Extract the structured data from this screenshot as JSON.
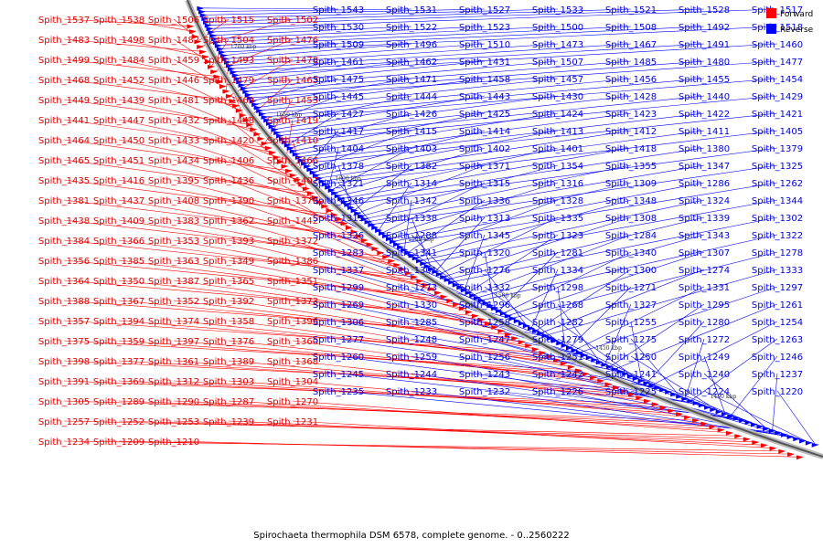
{
  "caption": "Spirochaeta thermophila DSM 6578, complete genome. - 0..2560222",
  "legend": {
    "forward": {
      "label": "Forward",
      "color": "#ff0000"
    },
    "reverse": {
      "label": "Reverse",
      "color": "#0000ff"
    }
  },
  "scale_labels": [
    "1700 kbp",
    "1650 kbp",
    "1600 kbp",
    "1550 kbp",
    "1500 kbp",
    "1450 kbp",
    "1400 kbp"
  ],
  "genes_forward": [
    "Spith_1537",
    "Spith_1538",
    "Spith_1506",
    "Spith_1515",
    "Spith_1502",
    "Spith_1483",
    "Spith_1498",
    "Spith_1482",
    "Spith_1504",
    "Spith_1476",
    "Spith_1499",
    "Spith_1484",
    "Spith_1459",
    "Spith_1493",
    "Spith_1478",
    "Spith_1468",
    "Spith_1452",
    "Spith_1446",
    "Spith_1479",
    "Spith_1463",
    "Spith_1449",
    "Spith_1439",
    "Spith_1481",
    "Spith_1469",
    "Spith_1453",
    "Spith_1441",
    "Spith_1447",
    "Spith_1432",
    "Spith_1448",
    "Spith_1419",
    "Spith_1464",
    "Spith_1450",
    "Spith_1433",
    "Spith_1420",
    "Spith_1410",
    "Spith_1465",
    "Spith_1451",
    "Spith_1434",
    "Spith_1406",
    "Spith_1466",
    "Spith_1435",
    "Spith_1416",
    "Spith_1395",
    "Spith_1436",
    "Spith_1407",
    "Spith_1381",
    "Spith_1437",
    "Spith_1408",
    "Spith_1390",
    "Spith_1370",
    "Spith_1438",
    "Spith_1409",
    "Spith_1383",
    "Spith_1362",
    "Spith_1442",
    "Spith_1384",
    "Spith_1366",
    "Spith_1353",
    "Spith_1393",
    "Spith_1372",
    "Spith_1356",
    "Spith_1385",
    "Spith_1363",
    "Spith_1349",
    "Spith_1386",
    "Spith_1364",
    "Spith_1350",
    "Spith_1387",
    "Spith_1365",
    "Spith_1351",
    "Spith_1388",
    "Spith_1367",
    "Spith_1352",
    "Spith_1392",
    "Spith_1373",
    "Spith_1357",
    "Spith_1394",
    "Spith_1374",
    "Spith_1358",
    "Spith_1396",
    "Spith_1375",
    "Spith_1359",
    "Spith_1397",
    "Spith_1376",
    "Spith_1360",
    "Spith_1398",
    "Spith_1377",
    "Spith_1361",
    "Spith_1389",
    "Spith_1368",
    "Spith_1391",
    "Spith_1369",
    "Spith_1312",
    "Spith_1303",
    "Spith_1304",
    "Spith_1305",
    "Spith_1289",
    "Spith_1290",
    "Spith_1287",
    "Spith_1270",
    "Spith_1257",
    "Spith_1252",
    "Spith_1253",
    "Spith_1239",
    "Spith_1231",
    "Spith_1234",
    "Spith_1209",
    "Spith_1210"
  ],
  "genes_reverse": [
    "Spith_1543",
    "Spith_1531",
    "Spith_1527",
    "Spith_1533",
    "Spith_1521",
    "Spith_1528",
    "Spith_1517",
    "Spith_1530",
    "Spith_1522",
    "Spith_1523",
    "Spith_1500",
    "Spith_1508",
    "Spith_1492",
    "Spith_1518",
    "Spith_1509",
    "Spith_1496",
    "Spith_1510",
    "Spith_1473",
    "Spith_1467",
    "Spith_1491",
    "Spith_1460",
    "Spith_1461",
    "Spith_1462",
    "Spith_1431",
    "Spith_1507",
    "Spith_1485",
    "Spith_1480",
    "Spith_1477",
    "Spith_1475",
    "Spith_1471",
    "Spith_1458",
    "Spith_1457",
    "Spith_1456",
    "Spith_1455",
    "Spith_1454",
    "Spith_1445",
    "Spith_1444",
    "Spith_1443",
    "Spith_1430",
    "Spith_1428",
    "Spith_1440",
    "Spith_1429",
    "Spith_1427",
    "Spith_1426",
    "Spith_1425",
    "Spith_1424",
    "Spith_1423",
    "Spith_1422",
    "Spith_1421",
    "Spith_1417",
    "Spith_1415",
    "Spith_1414",
    "Spith_1413",
    "Spith_1412",
    "Spith_1411",
    "Spith_1405",
    "Spith_1404",
    "Spith_1403",
    "Spith_1402",
    "Spith_1401",
    "Spith_1418",
    "Spith_1380",
    "Spith_1379",
    "Spith_1378",
    "Spith_1382",
    "Spith_1371",
    "Spith_1354",
    "Spith_1355",
    "Spith_1347",
    "Spith_1325",
    "Spith_1321",
    "Spith_1314",
    "Spith_1315",
    "Spith_1316",
    "Spith_1309",
    "Spith_1286",
    "Spith_1262",
    "Spith_1346",
    "Spith_1342",
    "Spith_1336",
    "Spith_1328",
    "Spith_1348",
    "Spith_1324",
    "Spith_1344",
    "Spith_1319",
    "Spith_1338",
    "Spith_1313",
    "Spith_1335",
    "Spith_1308",
    "Spith_1339",
    "Spith_1302",
    "Spith_1326",
    "Spith_1288",
    "Spith_1345",
    "Spith_1323",
    "Spith_1284",
    "Spith_1343",
    "Spith_1322",
    "Spith_1283",
    "Spith_1341",
    "Spith_1320",
    "Spith_1281",
    "Spith_1340",
    "Spith_1307",
    "Spith_1278",
    "Spith_1337",
    "Spith_1301",
    "Spith_1276",
    "Spith_1334",
    "Spith_1300",
    "Spith_1274",
    "Spith_1333",
    "Spith_1299",
    "Spith_1273",
    "Spith_1332",
    "Spith_1298",
    "Spith_1271",
    "Spith_1331",
    "Spith_1297",
    "Spith_1269",
    "Spith_1330",
    "Spith_1296",
    "Spith_1268",
    "Spith_1327",
    "Spith_1295",
    "Spith_1261",
    "Spith_1306",
    "Spith_1285",
    "Spith_1258",
    "Spith_1282",
    "Spith_1255",
    "Spith_1280",
    "Spith_1254",
    "Spith_1277",
    "Spith_1248",
    "Spith_1247",
    "Spith_1279",
    "Spith_1275",
    "Spith_1272",
    "Spith_1263",
    "Spith_1260",
    "Spith_1259",
    "Spith_1256",
    "Spith_1251",
    "Spith_1250",
    "Spith_1249",
    "Spith_1246",
    "Spith_1245",
    "Spith_1244",
    "Spith_1243",
    "Spith_1242",
    "Spith_1241",
    "Spith_1240",
    "Spith_1237",
    "Spith_1235",
    "Spith_1233",
    "Spith_1232",
    "Spith_1226",
    "Spith_1225",
    "Spith_1224",
    "Spith_1220"
  ]
}
